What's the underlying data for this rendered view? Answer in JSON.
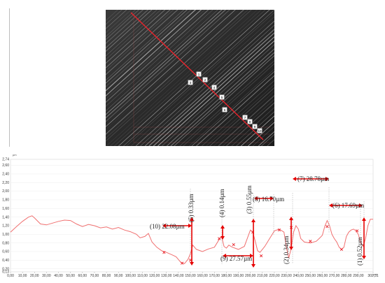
{
  "micrograph": {
    "markers": [
      "1",
      "2",
      "3",
      "4",
      "5",
      "6",
      "7",
      "8",
      "9",
      "10"
    ],
    "colors": {
      "line": "#e8232b",
      "grid": "#e6b8b8"
    }
  },
  "chart_data": {
    "type": "line",
    "xunit": "µm",
    "yunit": "µm",
    "xlim": [
      0,
      302.31
    ],
    "ylim": [
      0.13,
      2.74
    ],
    "x_ticks": [
      "0,00",
      "10,00",
      "20,00",
      "30,00",
      "40,00",
      "50,00",
      "60,00",
      "70,00",
      "80,00",
      "90,00",
      "100,00",
      "110,00",
      "120,00",
      "130,00",
      "140,00",
      "150,00",
      "160,00",
      "170,00",
      "180,00",
      "190,00",
      "200,00",
      "210,00",
      "220,00",
      "230,00",
      "240,00",
      "250,00",
      "260,00",
      "270,00",
      "280,00",
      "290,00",
      "302,31"
    ],
    "y_ticks": [
      "0,13",
      "0,20",
      "0,40",
      "0,60",
      "0,80",
      "1,00",
      "1,20",
      "1,40",
      "1,60",
      "1,80",
      "2,00",
      "2,20",
      "2,40",
      "2,60",
      "2,74"
    ],
    "series": [
      {
        "x": [
          0,
          5,
          10,
          15,
          18,
          20,
          25,
          30,
          35,
          40,
          45,
          50,
          55,
          60,
          65,
          70,
          75,
          80,
          85,
          90,
          95,
          100,
          105,
          108,
          112,
          115,
          118,
          122,
          126,
          130,
          135,
          138,
          142,
          145,
          148,
          150,
          152,
          155,
          160,
          165,
          170,
          174,
          176,
          178,
          180,
          182,
          185,
          190,
          195,
          198,
          200,
          202,
          204,
          206,
          208,
          212,
          216,
          220,
          224,
          228,
          230,
          232,
          234,
          236,
          238,
          240,
          242,
          245,
          250,
          255,
          258,
          260,
          262,
          264,
          266,
          268,
          270,
          272,
          274,
          276,
          278,
          280,
          282,
          284,
          286,
          288,
          290,
          292,
          294,
          296,
          298,
          300,
          302.31
        ],
        "y": [
          1.05,
          1.18,
          1.3,
          1.4,
          1.43,
          1.38,
          1.24,
          1.22,
          1.26,
          1.3,
          1.33,
          1.32,
          1.24,
          1.18,
          1.23,
          1.2,
          1.15,
          1.17,
          1.12,
          1.16,
          1.1,
          1.06,
          1.0,
          0.92,
          0.95,
          1.02,
          0.82,
          0.7,
          0.62,
          0.58,
          0.52,
          0.48,
          0.35,
          0.32,
          0.42,
          0.55,
          0.75,
          0.65,
          0.6,
          0.66,
          0.7,
          0.88,
          0.95,
          0.72,
          0.68,
          0.75,
          0.7,
          0.65,
          0.72,
          0.95,
          1.1,
          1.05,
          0.85,
          0.62,
          0.58,
          0.72,
          0.9,
          1.08,
          1.12,
          1.05,
          0.7,
          0.45,
          0.68,
          1.05,
          1.2,
          1.12,
          0.9,
          0.82,
          0.8,
          0.84,
          0.92,
          0.98,
          1.18,
          1.32,
          1.2,
          1.0,
          0.9,
          0.82,
          0.7,
          0.65,
          0.7,
          0.95,
          1.05,
          1.1,
          1.12,
          1.08,
          1.0,
          0.8,
          0.72,
          0.9,
          1.2,
          1.35,
          1.35
        ]
      }
    ],
    "markers": [
      {
        "x": 128,
        "y": 0.58
      },
      {
        "x": 143,
        "y": 0.33
      },
      {
        "x": 150,
        "y": 0.4
      },
      {
        "x": 174,
        "y": 0.9
      },
      {
        "x": 186,
        "y": 0.76
      },
      {
        "x": 202,
        "y": 1.05
      },
      {
        "x": 209,
        "y": 0.5
      },
      {
        "x": 224,
        "y": 1.1
      },
      {
        "x": 234,
        "y": 1.16
      },
      {
        "x": 250,
        "y": 0.84
      },
      {
        "x": 264,
        "y": 1.18
      },
      {
        "x": 276,
        "y": 0.65
      },
      {
        "x": 289,
        "y": 1.08
      }
    ]
  },
  "annotations": [
    {
      "id": "a10",
      "text": "(10) 22.08µm"
    },
    {
      "id": "a5",
      "text": "(5) 0.33µm"
    },
    {
      "id": "a4",
      "text": "(4) 0.14µm"
    },
    {
      "id": "a9",
      "text": "(9) 27.57µm"
    },
    {
      "id": "a3",
      "text": "(3) 0.55µm"
    },
    {
      "id": "a8",
      "text": "(8) 16.70µm"
    },
    {
      "id": "a2",
      "text": "(2) 0.34µm"
    },
    {
      "id": "a7",
      "text": "(7) 28.78µm"
    },
    {
      "id": "a6",
      "text": "(6) 17.69µm"
    },
    {
      "id": "a1",
      "text": "(1) 0.52µm"
    }
  ]
}
